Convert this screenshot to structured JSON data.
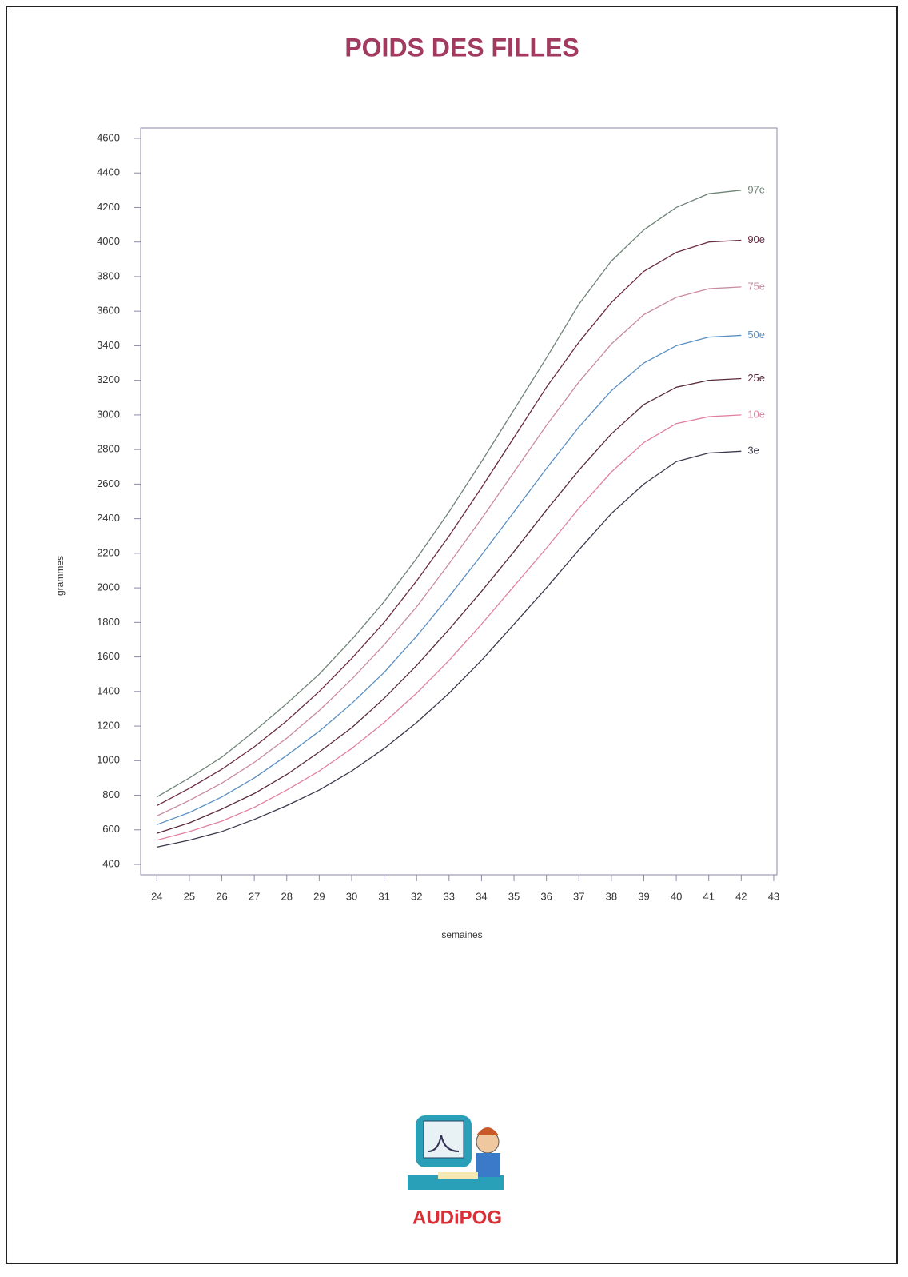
{
  "chart_data": {
    "type": "line",
    "title": "POIDS DES FILLES",
    "ylabel": "grammes",
    "xlabel": "semaines",
    "logo": "AUDiPOG",
    "x": [
      24,
      25,
      26,
      27,
      28,
      29,
      30,
      31,
      32,
      33,
      34,
      35,
      36,
      37,
      38,
      39,
      40,
      41,
      42
    ],
    "xlim": [
      23.5,
      43.1
    ],
    "xticks": [
      24,
      25,
      26,
      27,
      28,
      29,
      30,
      31,
      32,
      33,
      34,
      35,
      36,
      37,
      38,
      39,
      40,
      41,
      42,
      43
    ],
    "ylim": [
      340,
      4660
    ],
    "yticks": [
      400,
      600,
      800,
      1000,
      1200,
      1400,
      1600,
      1800,
      2000,
      2200,
      2400,
      2600,
      2800,
      3000,
      3200,
      3400,
      3600,
      3800,
      4000,
      4200,
      4400,
      4600
    ],
    "series": [
      {
        "name": "97e",
        "color": "#6f8476",
        "values": [
          790,
          900,
          1020,
          1170,
          1330,
          1500,
          1700,
          1920,
          2170,
          2440,
          2730,
          3030,
          3330,
          3640,
          3890,
          4070,
          4200,
          4280,
          4300
        ]
      },
      {
        "name": "90e",
        "color": "#6b2a44",
        "values": [
          740,
          840,
          950,
          1080,
          1230,
          1400,
          1590,
          1800,
          2040,
          2300,
          2580,
          2870,
          3160,
          3420,
          3650,
          3830,
          3940,
          4000,
          4010
        ]
      },
      {
        "name": "75e",
        "color": "#c98aa2",
        "values": [
          680,
          770,
          870,
          990,
          1130,
          1290,
          1470,
          1670,
          1890,
          2140,
          2400,
          2670,
          2940,
          3190,
          3410,
          3580,
          3680,
          3730,
          3740
        ]
      },
      {
        "name": "50e",
        "color": "#5a8fc0",
        "values": [
          630,
          700,
          790,
          900,
          1030,
          1170,
          1330,
          1510,
          1720,
          1950,
          2190,
          2440,
          2690,
          2930,
          3140,
          3300,
          3400,
          3450,
          3460
        ]
      },
      {
        "name": "25e",
        "color": "#5a2a3c",
        "values": [
          580,
          640,
          720,
          810,
          920,
          1050,
          1190,
          1360,
          1550,
          1760,
          1980,
          2210,
          2450,
          2680,
          2890,
          3060,
          3160,
          3200,
          3210
        ]
      },
      {
        "name": "10e",
        "color": "#e080a2",
        "values": [
          540,
          590,
          650,
          730,
          830,
          940,
          1070,
          1220,
          1390,
          1580,
          1790,
          2010,
          2230,
          2460,
          2670,
          2840,
          2950,
          2990,
          3000
        ]
      },
      {
        "name": "3e",
        "color": "#3a3a4c",
        "values": [
          500,
          540,
          590,
          660,
          740,
          830,
          940,
          1070,
          1220,
          1390,
          1580,
          1790,
          2000,
          2220,
          2430,
          2600,
          2730,
          2780,
          2790
        ]
      }
    ]
  }
}
